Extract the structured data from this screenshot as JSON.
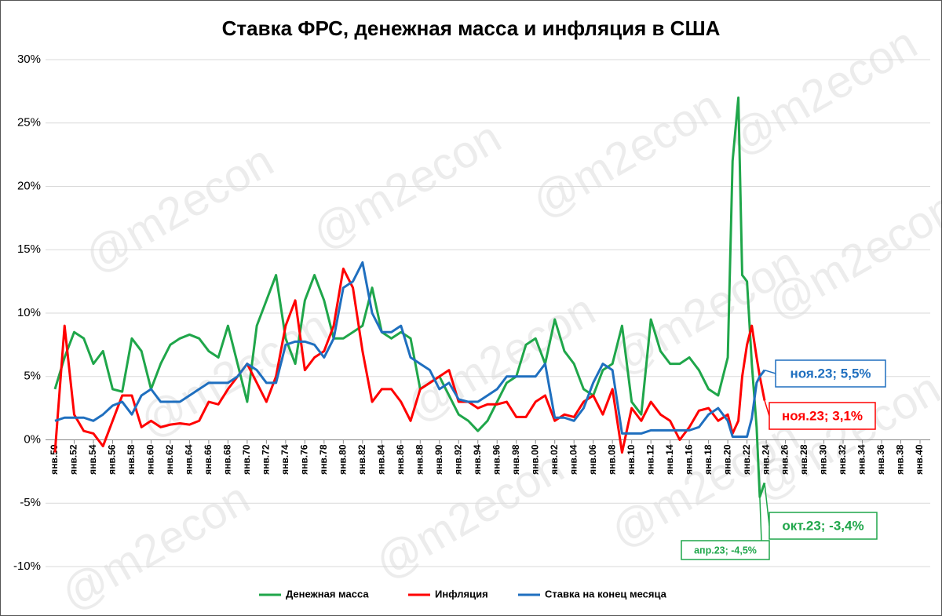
{
  "chart_data": {
    "type": "line",
    "title": "Ставка ФРС, денежная масса и инфляция в США",
    "watermark": "@m2econ",
    "x": [
      1950,
      1951,
      1952,
      1953,
      1954,
      1955,
      1956,
      1957,
      1958,
      1959,
      1960,
      1961,
      1962,
      1963,
      1964,
      1965,
      1966,
      1967,
      1968,
      1969,
      1970,
      1971,
      1972,
      1973,
      1974,
      1975,
      1976,
      1977,
      1978,
      1979,
      1980,
      1981,
      1982,
      1983,
      1984,
      1985,
      1986,
      1987,
      1988,
      1989,
      1990,
      1991,
      1992,
      1993,
      1994,
      1995,
      1996,
      1997,
      1998,
      1999,
      2000,
      2001,
      2002,
      2003,
      2004,
      2005,
      2006,
      2007,
      2008,
      2009,
      2010,
      2011,
      2012,
      2013,
      2014,
      2015,
      2016,
      2017,
      2018,
      2019,
      2020,
      2020.5,
      2021.1,
      2021.5,
      2022,
      2022.5,
      2023,
      2023.33,
      2023.83
    ],
    "series": [
      {
        "name": "Денежная масса",
        "color": "#1fa64a",
        "values": [
          4,
          6.5,
          8.5,
          8,
          6,
          7,
          4,
          3.8,
          8,
          7,
          4,
          6,
          7.5,
          8,
          8.3,
          8,
          7,
          6.5,
          9,
          6,
          3,
          9,
          11,
          13,
          8,
          6,
          11,
          13,
          11,
          8,
          8,
          8.5,
          9,
          12,
          8.5,
          8,
          8.5,
          8,
          4,
          4.5,
          5,
          3.5,
          2,
          1.5,
          0.7,
          1.5,
          3,
          4.5,
          5,
          7.5,
          8,
          6,
          9.5,
          7,
          6,
          4,
          3.5,
          5.5,
          6,
          9,
          3,
          2,
          9.5,
          7,
          6,
          6,
          6.5,
          5.5,
          4,
          3.5,
          6.5,
          22,
          27,
          13,
          12.5,
          6,
          1,
          -4.5,
          -3.4
        ]
      },
      {
        "name": "Инфляция",
        "color": "#ff0000",
        "values": [
          -1,
          9,
          2,
          0.7,
          0.5,
          -0.5,
          1.5,
          3.5,
          3.5,
          1,
          1.5,
          1,
          1.2,
          1.3,
          1.2,
          1.5,
          3,
          2.8,
          4,
          5,
          6,
          4.5,
          3,
          5,
          9,
          11,
          5.5,
          6.5,
          7,
          9,
          13.5,
          12,
          7,
          3,
          4,
          4,
          3,
          1.5,
          4,
          4.5,
          5,
          5.5,
          3,
          3,
          2.5,
          2.8,
          2.8,
          3,
          1.8,
          1.8,
          3,
          3.5,
          1.5,
          2,
          1.8,
          3,
          3.5,
          2,
          4,
          -1,
          2.5,
          1.5,
          3,
          2,
          1.5,
          0,
          1,
          2.3,
          2.5,
          1.5,
          2,
          0.5,
          1.5,
          5,
          7.5,
          9,
          6.5,
          5,
          3.1
        ]
      },
      {
        "name": "Ставка на конец месяца",
        "color": "#1f6fbf",
        "values": [
          1.5,
          1.75,
          1.75,
          1.75,
          1.5,
          2,
          2.7,
          3,
          2,
          3.5,
          4,
          3,
          3,
          3,
          3.5,
          4,
          4.5,
          4.5,
          4.5,
          5,
          6,
          5.5,
          4.5,
          4.5,
          7.5,
          7.75,
          7.75,
          7.5,
          6.5,
          8,
          12,
          12.5,
          14,
          10,
          8.5,
          8.5,
          9,
          6.5,
          6,
          5.5,
          4,
          4.5,
          3.2,
          3,
          3,
          3.5,
          4,
          5,
          5,
          5,
          5,
          6,
          1.75,
          1.75,
          1.5,
          2.5,
          4.5,
          6,
          5.5,
          0.5,
          0.5,
          0.5,
          0.75,
          0.75,
          0.75,
          0.75,
          0.75,
          1,
          2,
          2.5,
          1.5,
          0.25,
          0.25,
          0.25,
          0.25,
          1.7,
          4.5,
          5,
          5.5
        ]
      }
    ],
    "xlim": [
      1950,
      2040
    ],
    "xticks": [
      {
        "value": 1950,
        "label": "янв.50"
      },
      {
        "value": 1952,
        "label": "янв.52"
      },
      {
        "value": 1954,
        "label": "янв.54"
      },
      {
        "value": 1956,
        "label": "янв.56"
      },
      {
        "value": 1958,
        "label": "янв.58"
      },
      {
        "value": 1960,
        "label": "янв.60"
      },
      {
        "value": 1962,
        "label": "янв.62"
      },
      {
        "value": 1964,
        "label": "янв.64"
      },
      {
        "value": 1966,
        "label": "янв.66"
      },
      {
        "value": 1968,
        "label": "янв.68"
      },
      {
        "value": 1970,
        "label": "янв.70"
      },
      {
        "value": 1972,
        "label": "янв.72"
      },
      {
        "value": 1974,
        "label": "янв.74"
      },
      {
        "value": 1976,
        "label": "янв.76"
      },
      {
        "value": 1978,
        "label": "янв.78"
      },
      {
        "value": 1980,
        "label": "янв.80"
      },
      {
        "value": 1982,
        "label": "янв.82"
      },
      {
        "value": 1984,
        "label": "янв.84"
      },
      {
        "value": 1986,
        "label": "янв.86"
      },
      {
        "value": 1988,
        "label": "янв.88"
      },
      {
        "value": 1990,
        "label": "янв.90"
      },
      {
        "value": 1992,
        "label": "янв.92"
      },
      {
        "value": 1994,
        "label": "янв.94"
      },
      {
        "value": 1996,
        "label": "янв.96"
      },
      {
        "value": 1998,
        "label": "янв.98"
      },
      {
        "value": 2000,
        "label": "янв.00"
      },
      {
        "value": 2002,
        "label": "янв.02"
      },
      {
        "value": 2004,
        "label": "янв.04"
      },
      {
        "value": 2006,
        "label": "янв.06"
      },
      {
        "value": 2008,
        "label": "янв.08"
      },
      {
        "value": 2010,
        "label": "янв.10"
      },
      {
        "value": 2012,
        "label": "янв.12"
      },
      {
        "value": 2014,
        "label": "янв.14"
      },
      {
        "value": 2016,
        "label": "янв.16"
      },
      {
        "value": 2018,
        "label": "янв.18"
      },
      {
        "value": 2020,
        "label": "янв.20"
      },
      {
        "value": 2022,
        "label": "янв.22"
      },
      {
        "value": 2024,
        "label": "янв.24"
      },
      {
        "value": 2026,
        "label": "янв.26"
      },
      {
        "value": 2028,
        "label": "янв.28"
      },
      {
        "value": 2030,
        "label": "янв.30"
      },
      {
        "value": 2032,
        "label": "янв.32"
      },
      {
        "value": 2034,
        "label": "янв.34"
      },
      {
        "value": 2036,
        "label": "янв.36"
      },
      {
        "value": 2038,
        "label": "янв.38"
      },
      {
        "value": 2040,
        "label": "янв.40"
      }
    ],
    "ylim": [
      -10,
      30
    ],
    "yticks": [
      {
        "value": -10,
        "label": "-10%"
      },
      {
        "value": -5,
        "label": "-5%"
      },
      {
        "value": 0,
        "label": "0%"
      },
      {
        "value": 5,
        "label": "5%"
      },
      {
        "value": 10,
        "label": "10%"
      },
      {
        "value": 15,
        "label": "15%"
      },
      {
        "value": 20,
        "label": "20%"
      },
      {
        "value": 25,
        "label": "25%"
      },
      {
        "value": 30,
        "label": "30%"
      }
    ],
    "grid": true,
    "legend": "bottom",
    "annotations": [
      {
        "text": "ноя.23; 5,5%",
        "x": 2023.83,
        "y": 5.5,
        "color": "#1f6fbf"
      },
      {
        "text": "ноя.23; 3,1%",
        "x": 2023.83,
        "y": 3.1,
        "color": "#ff0000"
      },
      {
        "text": "окт.23; -3,4%",
        "x": 2023.83,
        "y": -3.4,
        "color": "#1fa64a"
      },
      {
        "text": "апр.23; -4,5%",
        "x": 2023.33,
        "y": -4.5,
        "color": "#1fa64a"
      }
    ]
  }
}
